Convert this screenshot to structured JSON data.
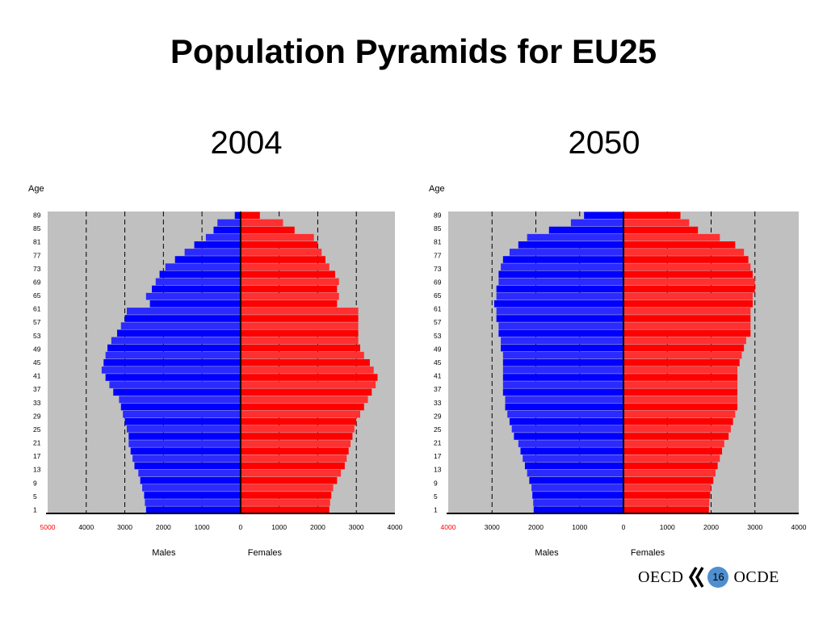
{
  "title": "Population Pyramids for EU25",
  "footer": {
    "org_en": "OECD",
    "org_fr": "OCDE",
    "page_number": "16"
  },
  "colors": {
    "males": "#0000ff",
    "females": "#ff0000",
    "plot_bg": "#c0c0c0",
    "red_label": "#ff0000"
  },
  "chart_data": [
    {
      "type": "bar",
      "title": "2004",
      "ylabel": "Age",
      "xlabel_left": "Males",
      "xlabel_right": "Females",
      "age_ticks": [
        "1",
        "5",
        "9",
        "13",
        "17",
        "21",
        "25",
        "29",
        "33",
        "37",
        "41",
        "45",
        "49",
        "53",
        "57",
        "61",
        "65",
        "69",
        "73",
        "77",
        "81",
        "85",
        "89"
      ],
      "x_tick_labels_left": [
        "5000",
        "4000",
        "3000",
        "2000",
        "1000"
      ],
      "x_tick_labels_right": [
        "0",
        "1000",
        "2000",
        "3000",
        "4000"
      ],
      "xlim_left": [
        5000,
        0
      ],
      "xlim_right": [
        0,
        4000
      ],
      "series": [
        {
          "name": "Males",
          "values": [
            2450,
            2480,
            2500,
            2550,
            2600,
            2650,
            2750,
            2800,
            2850,
            2900,
            2900,
            2950,
            3000,
            3050,
            3100,
            3150,
            3300,
            3400,
            3500,
            3600,
            3550,
            3500,
            3450,
            3350,
            3200,
            3100,
            3000,
            2950,
            2350,
            2450,
            2300,
            2200,
            2100,
            1950,
            1700,
            1450,
            1200,
            900,
            700,
            600,
            150
          ]
        },
        {
          "name": "Females",
          "values": [
            2300,
            2320,
            2350,
            2400,
            2500,
            2600,
            2700,
            2750,
            2800,
            2850,
            2900,
            2950,
            3000,
            3100,
            3200,
            3300,
            3400,
            3500,
            3550,
            3450,
            3350,
            3200,
            3100,
            3050,
            3050,
            3050,
            3050,
            3050,
            2500,
            2550,
            2500,
            2550,
            2450,
            2300,
            2200,
            2100,
            2000,
            1900,
            1400,
            1100,
            500
          ]
        }
      ]
    },
    {
      "type": "bar",
      "title": "2050",
      "ylabel": "Age",
      "xlabel_left": "Males",
      "xlabel_right": "Females",
      "age_ticks": [
        "1",
        "5",
        "9",
        "13",
        "17",
        "21",
        "25",
        "29",
        "33",
        "37",
        "41",
        "45",
        "49",
        "53",
        "57",
        "61",
        "65",
        "69",
        "73",
        "77",
        "81",
        "85",
        "89"
      ],
      "x_tick_labels_left": [
        "4000",
        "3000",
        "2000",
        "1000"
      ],
      "x_tick_labels_right": [
        "0",
        "1000",
        "2000",
        "3000",
        "4000"
      ],
      "xlim_left": [
        4000,
        0
      ],
      "xlim_right": [
        0,
        4000
      ],
      "series": [
        {
          "name": "Males",
          "values": [
            2050,
            2060,
            2080,
            2100,
            2150,
            2200,
            2250,
            2300,
            2350,
            2400,
            2500,
            2550,
            2600,
            2650,
            2700,
            2700,
            2750,
            2750,
            2750,
            2750,
            2750,
            2750,
            2800,
            2800,
            2850,
            2850,
            2900,
            2900,
            2950,
            2900,
            2900,
            2850,
            2850,
            2800,
            2750,
            2600,
            2400,
            2200,
            1700,
            1200,
            900
          ]
        },
        {
          "name": "Females",
          "values": [
            1950,
            1960,
            1980,
            2000,
            2050,
            2100,
            2150,
            2200,
            2250,
            2300,
            2400,
            2450,
            2500,
            2550,
            2600,
            2600,
            2600,
            2600,
            2600,
            2600,
            2650,
            2700,
            2750,
            2800,
            2900,
            2900,
            2900,
            2900,
            2950,
            2950,
            3000,
            3000,
            2950,
            2900,
            2850,
            2750,
            2550,
            2200,
            1700,
            1500,
            1300
          ]
        }
      ]
    }
  ]
}
